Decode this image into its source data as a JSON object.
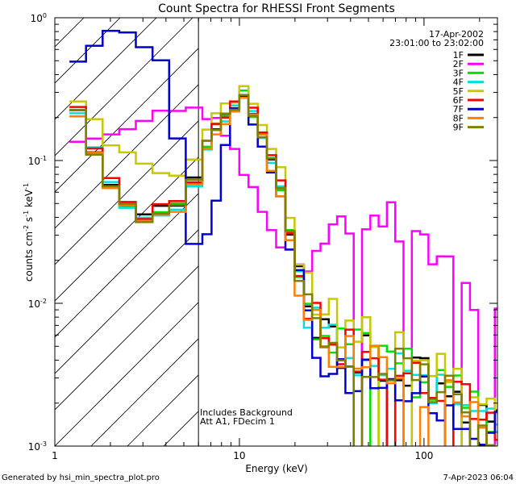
{
  "chart_data": {
    "type": "line",
    "title": "Count Spectra for RHESSI Front Segments",
    "xlabel": "Energy (keV)",
    "ylabel_main": "counts cm",
    "ylabel_s": "s",
    "ylabel_kev": "keV",
    "ylabel_exp": "-2",
    "ylabel_exp2": "-1",
    "ylabel_exp3": "-1",
    "xscale": "log",
    "yscale": "log",
    "xlim": [
      1,
      250
    ],
    "ylim": [
      0.001,
      1.0
    ],
    "xticks": [
      {
        "value": 1,
        "label": "1"
      },
      {
        "value": 10,
        "label": "10"
      },
      {
        "value": 100,
        "label": "100"
      }
    ],
    "yticks": [
      {
        "value": 1,
        "base": "10",
        "exp": "0"
      },
      {
        "value": 0.1,
        "base": "10",
        "exp": "-1"
      },
      {
        "value": 0.01,
        "base": "10",
        "exp": "-2"
      },
      {
        "value": 0.001,
        "base": "10",
        "exp": "-3"
      }
    ],
    "attenuator_boundary_kev": 6,
    "date": "17-Apr-2002",
    "time_range": "23:01:00 to 23:02:00",
    "annotation_line1": "Includes Background",
    "annotation_line2": "Att A1, FDecim 1",
    "footer_left": "Generated by hsi_min_spectra_plot.pro",
    "footer_right": "7-Apr-2023 06:04",
    "legend_position": "top-right",
    "series": [
      {
        "name": "1F",
        "color": "#000000",
        "base": 1.0,
        "seed": 11
      },
      {
        "name": "2F",
        "color": "#ff00ff",
        "base": 1.0,
        "seed": 23
      },
      {
        "name": "3F",
        "color": "#00e000",
        "base": 1.0,
        "seed": 37
      },
      {
        "name": "4F",
        "color": "#00e0e0",
        "base": 0.95,
        "seed": 41
      },
      {
        "name": "5F",
        "color": "#c8c800",
        "base": 1.15,
        "seed": 53
      },
      {
        "name": "6F",
        "color": "#ff0000",
        "base": 1.05,
        "seed": 67
      },
      {
        "name": "7F",
        "color": "#0000cc",
        "base": 1.0,
        "seed": 79
      },
      {
        "name": "8F",
        "color": "#ff8000",
        "base": 0.9,
        "seed": 83
      },
      {
        "name": "9F",
        "color": "#808000",
        "base": 1.0,
        "seed": 97
      }
    ]
  }
}
